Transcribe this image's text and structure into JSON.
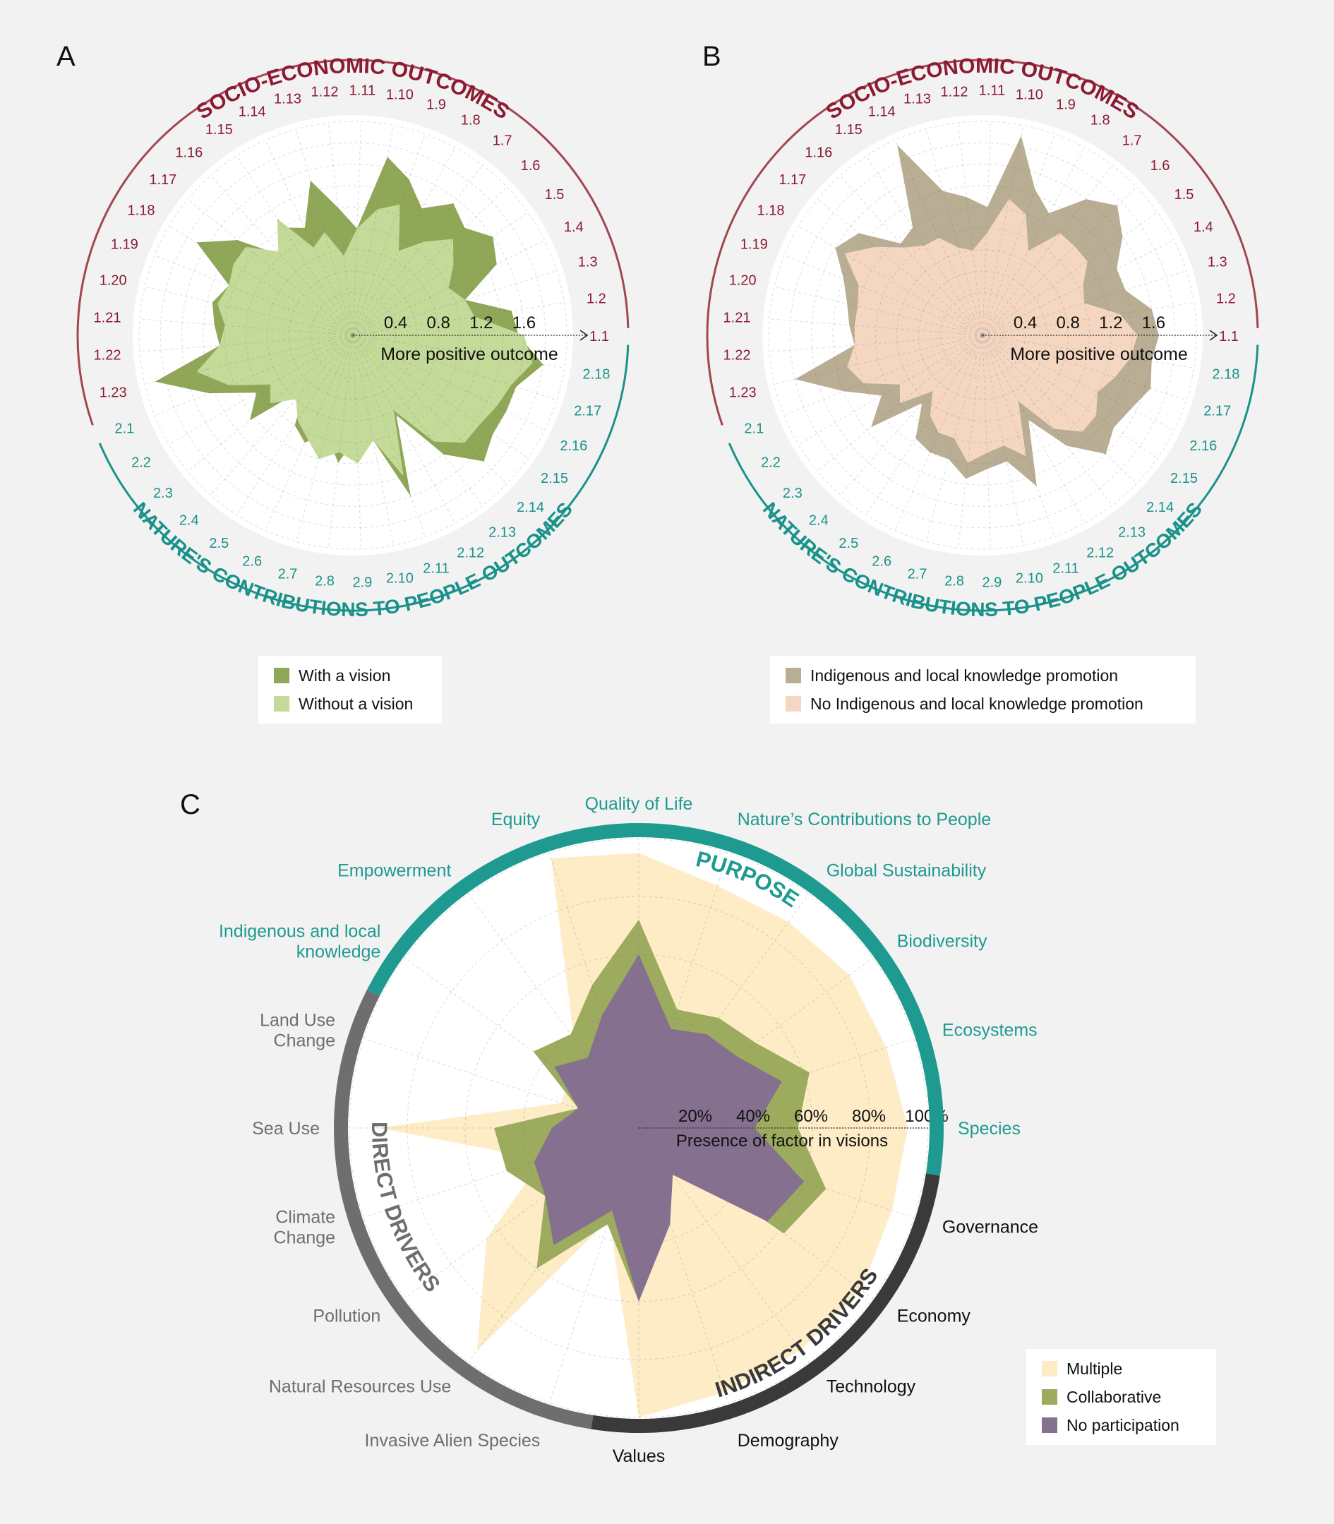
{
  "colors": {
    "socio": "#8b1a32",
    "socio_arc": "#a24650",
    "nature": "#1a928a",
    "purpose": "#1e9a90",
    "direct": "#6e6e6e",
    "indirect": "#3a3a3a",
    "text_direct": "#6e6e6e",
    "text_indirect": "#111111",
    "grid": "#cfcfcf"
  },
  "chart_data": [
    {
      "id": "A",
      "panel_label": "A",
      "type": "radar",
      "group_titles": [
        "SOCIO-ECONOMIC OUTCOMES",
        "NATURE'S CONTRIBUTIONS TO PEOPLE OUTCOMES"
      ],
      "categories": [
        "1.1",
        "1.2",
        "1.3",
        "1.4",
        "1.5",
        "1.6",
        "1.7",
        "1.8",
        "1.9",
        "1.10",
        "1.11",
        "1.12",
        "1.13",
        "1.14",
        "1.15",
        "1.16",
        "1.17",
        "1.18",
        "1.19",
        "1.20",
        "1.21",
        "1.22",
        "1.23",
        "2.1",
        "2.2",
        "2.3",
        "2.4",
        "2.5",
        "2.6",
        "2.7",
        "2.8",
        "2.9",
        "2.10",
        "2.11",
        "2.12",
        "2.13",
        "2.14",
        "2.15",
        "2.16",
        "2.17",
        "2.18"
      ],
      "category_groups": [
        0,
        0,
        0,
        0,
        0,
        0,
        0,
        0,
        0,
        0,
        0,
        0,
        0,
        0,
        0,
        0,
        0,
        0,
        0,
        0,
        0,
        0,
        0,
        1,
        1,
        1,
        1,
        1,
        1,
        1,
        1,
        1,
        1,
        1,
        1,
        1,
        1,
        1,
        1,
        1,
        1
      ],
      "rlim": [
        0,
        2.0
      ],
      "radial_ticks": [
        0.4,
        0.8,
        1.2,
        1.6
      ],
      "radial_tick_labels": [
        "0.4",
        "0.8",
        "1.2",
        "1.6"
      ],
      "axis_label": "More positive outcome",
      "series": [
        {
          "name": "With a vision",
          "color": "#8fa757",
          "values": [
            1.55,
            1.5,
            1.1,
            1.5,
            1.6,
            1.45,
            1.55,
            1.35,
            1.55,
            1.7,
            1.0,
            1.2,
            1.5,
            1.1,
            1.2,
            1.0,
            1.4,
            1.7,
            1.25,
            1.35,
            1.3,
            1.25,
            1.9,
            1.45,
            1.05,
            1.25,
            0.65,
            1.0,
            1.1,
            0.95,
            1.2,
            0.95,
            1.0,
            1.6,
            0.85,
            1.4,
            1.7,
            1.6,
            1.6,
            1.6,
            1.8
          ]
        },
        {
          "name": "Without a vision",
          "color": "#c4da99",
          "values": [
            1.6,
            1.15,
            1.1,
            1.0,
            1.15,
            1.3,
            1.1,
            0.9,
            1.3,
            1.2,
            1.0,
            0.75,
            1.0,
            0.9,
            1.3,
            1.05,
            1.3,
            1.3,
            1.25,
            1.3,
            1.2,
            1.25,
            1.5,
            1.25,
            0.9,
            1.0,
            0.8,
            0.95,
            1.05,
            1.2,
            1.1,
            1.2,
            1.0,
            1.4,
            0.8,
            1.25,
            1.45,
            1.45,
            1.5,
            1.55,
            1.7
          ]
        }
      ]
    },
    {
      "id": "B",
      "panel_label": "B",
      "type": "radar",
      "group_titles": [
        "SOCIO-ECONOMIC OUTCOMES",
        "NATURE'S CONTRIBUTIONS TO PEOPLE OUTCOMES"
      ],
      "categories": [
        "1.1",
        "1.2",
        "1.3",
        "1.4",
        "1.5",
        "1.6",
        "1.7",
        "1.8",
        "1.9",
        "1.10",
        "1.11",
        "1.12",
        "1.13",
        "1.14",
        "1.15",
        "1.16",
        "1.17",
        "1.18",
        "1.19",
        "1.20",
        "1.21",
        "1.22",
        "1.23",
        "2.1",
        "2.2",
        "2.3",
        "2.4",
        "2.5",
        "2.6",
        "2.7",
        "2.8",
        "2.9",
        "2.10",
        "2.11",
        "2.12",
        "2.13",
        "2.14",
        "2.15",
        "2.16",
        "2.17",
        "2.18"
      ],
      "category_groups": [
        0,
        0,
        0,
        0,
        0,
        0,
        0,
        0,
        0,
        0,
        0,
        0,
        0,
        0,
        0,
        0,
        0,
        0,
        0,
        0,
        0,
        0,
        0,
        1,
        1,
        1,
        1,
        1,
        1,
        1,
        1,
        1,
        1,
        1,
        1,
        1,
        1,
        1,
        1,
        1,
        1
      ],
      "rlim": [
        0,
        2.0
      ],
      "radial_ticks": [
        0.4,
        0.8,
        1.2,
        1.6
      ],
      "radial_tick_labels": [
        "0.4",
        "0.8",
        "1.2",
        "1.6"
      ],
      "axis_label": "More positive outcome",
      "series": [
        {
          "name": "Indigenous and local knowledge promotion",
          "color": "#b9ad93",
          "values": [
            1.65,
            1.6,
            1.4,
            1.4,
            1.6,
            1.75,
            1.6,
            1.3,
            1.45,
            1.9,
            1.2,
            1.3,
            1.4,
            1.95,
            1.2,
            1.15,
            1.5,
            1.6,
            1.4,
            1.3,
            1.25,
            1.2,
            1.8,
            1.4,
            1.1,
            1.35,
            0.85,
            1.15,
            1.2,
            1.2,
            1.35,
            1.25,
            1.2,
            1.5,
            0.9,
            1.3,
            1.6,
            1.5,
            1.55,
            1.65,
            1.6
          ]
        },
        {
          "name": "No Indigenous and local knowledge promotion",
          "color": "#f5d6c0",
          "values": [
            1.45,
            1.3,
            1.0,
            1.05,
            1.2,
            1.2,
            1.2,
            0.9,
            1.2,
            1.3,
            0.95,
            0.8,
            0.85,
            1.0,
            1.0,
            1.1,
            1.3,
            1.5,
            1.25,
            1.2,
            1.2,
            1.2,
            1.3,
            1.2,
            0.9,
            1.0,
            0.7,
            0.9,
            1.0,
            1.0,
            1.2,
            1.1,
            1.05,
            1.2,
            0.7,
            1.1,
            1.3,
            1.3,
            1.2,
            1.3,
            1.4
          ]
        }
      ]
    },
    {
      "id": "C",
      "panel_label": "C",
      "type": "radar",
      "categories": [
        "Species",
        "Ecosystems",
        "Biodiversity",
        "Global Sustainability",
        "Nature’s Contributions to People",
        "Quality of Life",
        "Equity",
        "Empowerment",
        "Indigenous and local knowledge",
        "Land Use Change",
        "Sea Use",
        "Climate Change",
        "Pollution",
        "Natural Resources Use",
        "Invasive Alien Species",
        "Values",
        "Demography",
        "Technology",
        "Economy",
        "Governance"
      ],
      "category_groups": [
        0,
        0,
        0,
        0,
        0,
        0,
        0,
        0,
        0,
        1,
        1,
        1,
        1,
        1,
        1,
        2,
        2,
        2,
        2,
        2
      ],
      "group_titles": [
        "PURPOSE",
        "DIRECT DRIVERS",
        "INDIRECT DRIVERS"
      ],
      "rlim": [
        0,
        100
      ],
      "radial_ticks": [
        20,
        40,
        60,
        80,
        100
      ],
      "radial_tick_labels": [
        "20%",
        "40%",
        "60%",
        "80%",
        "100%"
      ],
      "axis_label": "Presence of factor in visions",
      "series": [
        {
          "name": "Multiple",
          "color": "#fdecc6",
          "values": [
            93,
            90,
            90,
            88,
            88,
            95,
            98,
            38,
            30,
            28,
            90,
            35,
            65,
            95,
            33,
            100,
            96,
            95,
            95,
            92
          ]
        },
        {
          "name": "Collaborative",
          "color": "#9cab5d",
          "values": [
            55,
            62,
            50,
            47,
            43,
            72,
            52,
            40,
            45,
            22,
            50,
            48,
            40,
            60,
            35,
            60,
            25,
            5,
            62,
            68
          ]
        },
        {
          "name": "No participation",
          "color": "#85708f",
          "values": [
            40,
            52,
            42,
            40,
            36,
            60,
            41,
            30,
            36,
            22,
            30,
            38,
            40,
            50,
            30,
            60,
            35,
            20,
            55,
            60
          ]
        }
      ]
    }
  ]
}
